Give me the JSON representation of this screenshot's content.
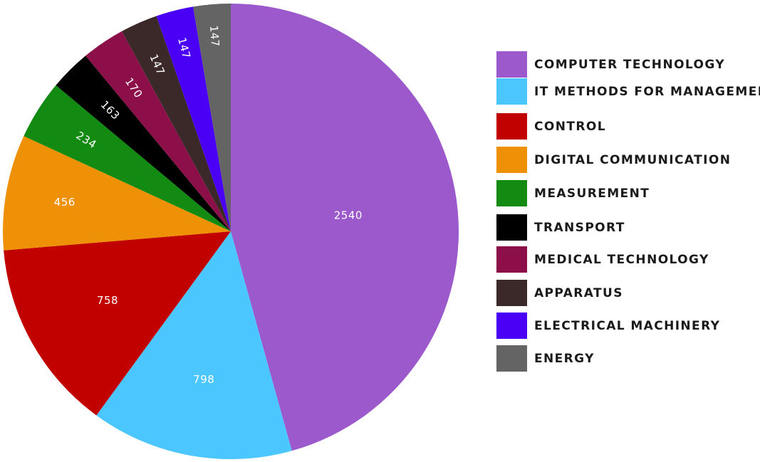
{
  "chart_data": {
    "type": "pie",
    "title": "",
    "legend_position": "right",
    "slices": [
      {
        "label": "COMPUTER TECHNOLOGY",
        "value": 2540,
        "color": "#9b59cc"
      },
      {
        "label": "IT METHODS FOR MANAGEMENT",
        "value": 798,
        "color": "#4cc6ff"
      },
      {
        "label": "CONTROL",
        "value": 758,
        "color": "#c10000"
      },
      {
        "label": "DIGITAL COMMUNICATION",
        "value": 456,
        "color": "#ee9107"
      },
      {
        "label": "MEASUREMENT",
        "value": 234,
        "color": "#138a12"
      },
      {
        "label": "TRANSPORT",
        "value": 163,
        "color": "#000000"
      },
      {
        "label": "MEDICAL TECHNOLOGY",
        "value": 170,
        "color": "#8d0f4a"
      },
      {
        "label": "APPARATUS",
        "value": 147,
        "color": "#3b2829"
      },
      {
        "label": "ELECTRICAL MACHINERY",
        "value": 147,
        "color": "#4a00f5"
      },
      {
        "label": "ENERGY",
        "value": 147,
        "color": "#646464"
      }
    ]
  }
}
